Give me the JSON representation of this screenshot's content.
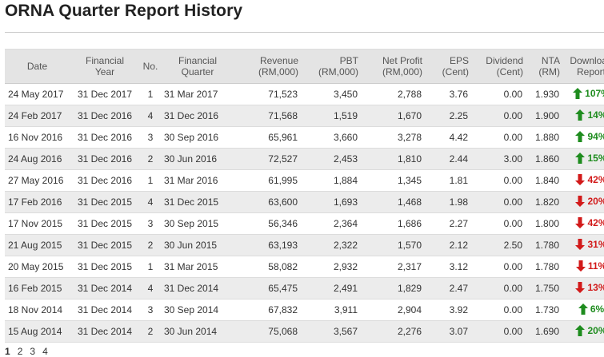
{
  "page": {
    "title": "ORNA Quarter Report History"
  },
  "colors": {
    "up": "#1e8c1e",
    "down": "#d21a1a",
    "header_bg": "#e4e4e4",
    "even_row_bg": "#ececec"
  },
  "table": {
    "headers": [
      "Date",
      "Financial\nYear",
      "No.",
      "Financial\nQuarter",
      "Revenue\n(RM,000)",
      "PBT\n(RM,000)",
      "Net Profit\n(RM,000)",
      "EPS\n(Cent)",
      "Dividend\n(Cent)",
      "NTA\n(RM)",
      "Download\nReport"
    ],
    "rows": [
      {
        "date": "24 May 2017",
        "fy": "31 Dec 2017",
        "no": "1",
        "fq": "31 Mar 2017",
        "revenue": "71,523",
        "pbt": "3,450",
        "np": "2,788",
        "eps": "3.76",
        "div": "0.00",
        "nta": "1.930",
        "change": "107%",
        "dir": "up"
      },
      {
        "date": "24 Feb 2017",
        "fy": "31 Dec 2016",
        "no": "4",
        "fq": "31 Dec 2016",
        "revenue": "71,568",
        "pbt": "1,519",
        "np": "1,670",
        "eps": "2.25",
        "div": "0.00",
        "nta": "1.900",
        "change": "14%",
        "dir": "up"
      },
      {
        "date": "16 Nov 2016",
        "fy": "31 Dec 2016",
        "no": "3",
        "fq": "30 Sep 2016",
        "revenue": "65,961",
        "pbt": "3,660",
        "np": "3,278",
        "eps": "4.42",
        "div": "0.00",
        "nta": "1.880",
        "change": "94%",
        "dir": "up"
      },
      {
        "date": "24 Aug 2016",
        "fy": "31 Dec 2016",
        "no": "2",
        "fq": "30 Jun 2016",
        "revenue": "72,527",
        "pbt": "2,453",
        "np": "1,810",
        "eps": "2.44",
        "div": "3.00",
        "nta": "1.860",
        "change": "15%",
        "dir": "up"
      },
      {
        "date": "27 May 2016",
        "fy": "31 Dec 2016",
        "no": "1",
        "fq": "31 Mar 2016",
        "revenue": "61,995",
        "pbt": "1,884",
        "np": "1,345",
        "eps": "1.81",
        "div": "0.00",
        "nta": "1.840",
        "change": "42%",
        "dir": "down"
      },
      {
        "date": "17 Feb 2016",
        "fy": "31 Dec 2015",
        "no": "4",
        "fq": "31 Dec 2015",
        "revenue": "63,600",
        "pbt": "1,693",
        "np": "1,468",
        "eps": "1.98",
        "div": "0.00",
        "nta": "1.820",
        "change": "20%",
        "dir": "down"
      },
      {
        "date": "17 Nov 2015",
        "fy": "31 Dec 2015",
        "no": "3",
        "fq": "30 Sep 2015",
        "revenue": "56,346",
        "pbt": "2,364",
        "np": "1,686",
        "eps": "2.27",
        "div": "0.00",
        "nta": "1.800",
        "change": "42%",
        "dir": "down"
      },
      {
        "date": "21 Aug 2015",
        "fy": "31 Dec 2015",
        "no": "2",
        "fq": "30 Jun 2015",
        "revenue": "63,193",
        "pbt": "2,322",
        "np": "1,570",
        "eps": "2.12",
        "div": "2.50",
        "nta": "1.780",
        "change": "31%",
        "dir": "down"
      },
      {
        "date": "20 May 2015",
        "fy": "31 Dec 2015",
        "no": "1",
        "fq": "31 Mar 2015",
        "revenue": "58,082",
        "pbt": "2,932",
        "np": "2,317",
        "eps": "3.12",
        "div": "0.00",
        "nta": "1.780",
        "change": "11%",
        "dir": "down"
      },
      {
        "date": "16 Feb 2015",
        "fy": "31 Dec 2014",
        "no": "4",
        "fq": "31 Dec 2014",
        "revenue": "65,475",
        "pbt": "2,491",
        "np": "1,829",
        "eps": "2.47",
        "div": "0.00",
        "nta": "1.750",
        "change": "13%",
        "dir": "down"
      },
      {
        "date": "18 Nov 2014",
        "fy": "31 Dec 2014",
        "no": "3",
        "fq": "30 Sep 2014",
        "revenue": "67,832",
        "pbt": "3,911",
        "np": "2,904",
        "eps": "3.92",
        "div": "0.00",
        "nta": "1.730",
        "change": "6%",
        "dir": "up"
      },
      {
        "date": "15 Aug 2014",
        "fy": "31 Dec 2014",
        "no": "2",
        "fq": "30 Jun 2014",
        "revenue": "75,068",
        "pbt": "3,567",
        "np": "2,276",
        "eps": "3.07",
        "div": "0.00",
        "nta": "1.690",
        "change": "20%",
        "dir": "up"
      }
    ]
  },
  "pagination": {
    "pages": [
      "1",
      "2",
      "3",
      "4"
    ]
  }
}
